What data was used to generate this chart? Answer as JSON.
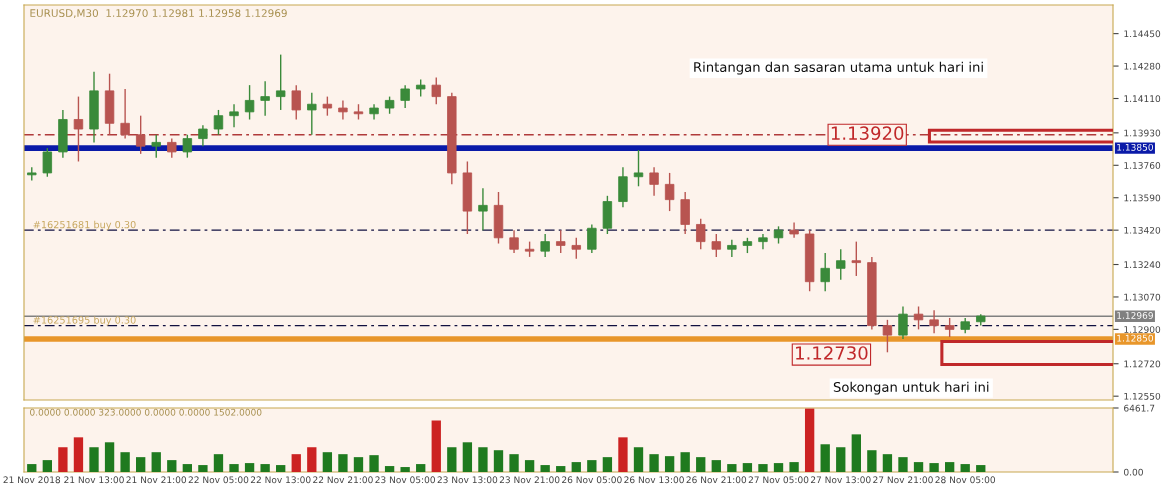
{
  "chart_data": [
    {
      "type": "candlestick",
      "title": "EURUSD,M30  1.12970 1.12981 1.12958 1.12969",
      "categories": [
        "21 Nov 2018",
        null,
        null,
        null,
        "21 Nov 13:00",
        null,
        null,
        null,
        "21 Nov 21:00",
        null,
        null,
        null,
        "22 Nov 05:00",
        null,
        null,
        null,
        "22 Nov 13:00",
        null,
        null,
        null,
        "22 Nov 21:00",
        null,
        null,
        null,
        "23 Nov 05:00",
        null,
        null,
        null,
        "23 Nov 13:00",
        null,
        null,
        null,
        "23 Nov 21:00",
        null,
        null,
        null,
        "26 Nov 05:00",
        null,
        null,
        null,
        "26 Nov 13:00",
        null,
        null,
        null,
        "26 Nov 21:00",
        null,
        null,
        null,
        "27 Nov 05:00",
        null,
        null,
        null,
        "27 Nov 13:00",
        null,
        null,
        null,
        "27 Nov 21:00",
        null,
        null,
        null,
        "28 Nov 05:00",
        null,
        null,
        null,
        null,
        null,
        null,
        null,
        null,
        null
      ],
      "ohlc": [
        [
          1.1371,
          1.1375,
          1.1368,
          1.1372
        ],
        [
          1.1372,
          1.1385,
          1.137,
          1.1383
        ],
        [
          1.1383,
          1.1405,
          1.138,
          1.14
        ],
        [
          1.14,
          1.1412,
          1.1378,
          1.1395
        ],
        [
          1.1395,
          1.1425,
          1.1388,
          1.1415
        ],
        [
          1.1415,
          1.1424,
          1.1392,
          1.1398
        ],
        [
          1.1398,
          1.1416,
          1.139,
          1.1392
        ],
        [
          1.1392,
          1.1402,
          1.1382,
          1.1386
        ],
        [
          1.1386,
          1.1392,
          1.138,
          1.1388
        ],
        [
          1.1388,
          1.139,
          1.138,
          1.1383
        ],
        [
          1.1383,
          1.1392,
          1.138,
          1.139
        ],
        [
          1.139,
          1.1397,
          1.1386,
          1.1395
        ],
        [
          1.1395,
          1.1405,
          1.1392,
          1.1402
        ],
        [
          1.1402,
          1.1408,
          1.1396,
          1.1404
        ],
        [
          1.1404,
          1.1418,
          1.14,
          1.141
        ],
        [
          1.141,
          1.142,
          1.1402,
          1.1412
        ],
        [
          1.1412,
          1.1434,
          1.1405,
          1.1415
        ],
        [
          1.1415,
          1.1418,
          1.14,
          1.1405
        ],
        [
          1.1405,
          1.1414,
          1.1392,
          1.1408
        ],
        [
          1.1408,
          1.1412,
          1.1402,
          1.1406
        ],
        [
          1.1406,
          1.141,
          1.14,
          1.1404
        ],
        [
          1.1404,
          1.1408,
          1.14,
          1.1403
        ],
        [
          1.1403,
          1.1408,
          1.14,
          1.1406
        ],
        [
          1.1406,
          1.1412,
          1.1403,
          1.141
        ],
        [
          1.141,
          1.1418,
          1.1406,
          1.1416
        ],
        [
          1.1416,
          1.1421,
          1.1412,
          1.1418
        ],
        [
          1.1418,
          1.1422,
          1.1408,
          1.1412
        ],
        [
          1.1412,
          1.1414,
          1.1366,
          1.1372
        ],
        [
          1.1372,
          1.1378,
          1.134,
          1.1352
        ],
        [
          1.1352,
          1.1364,
          1.1342,
          1.1355
        ],
        [
          1.1355,
          1.1362,
          1.1335,
          1.1338
        ],
        [
          1.1338,
          1.1342,
          1.133,
          1.1332
        ],
        [
          1.1332,
          1.1336,
          1.1328,
          1.1331
        ],
        [
          1.1331,
          1.134,
          1.1328,
          1.1336
        ],
        [
          1.1336,
          1.1342,
          1.133,
          1.1334
        ],
        [
          1.1334,
          1.1338,
          1.1327,
          1.1332
        ],
        [
          1.1332,
          1.1345,
          1.133,
          1.1343
        ],
        [
          1.1343,
          1.136,
          1.134,
          1.1357
        ],
        [
          1.1357,
          1.1375,
          1.1354,
          1.137
        ],
        [
          1.137,
          1.1384,
          1.1365,
          1.1372
        ],
        [
          1.1372,
          1.1375,
          1.136,
          1.1366
        ],
        [
          1.1366,
          1.1372,
          1.1352,
          1.1358
        ],
        [
          1.1358,
          1.1362,
          1.134,
          1.1345
        ],
        [
          1.1345,
          1.1348,
          1.1332,
          1.1336
        ],
        [
          1.1336,
          1.134,
          1.1328,
          1.1332
        ],
        [
          1.1332,
          1.1337,
          1.1328,
          1.1334
        ],
        [
          1.1334,
          1.1338,
          1.133,
          1.1336
        ],
        [
          1.1336,
          1.134,
          1.1332,
          1.1338
        ],
        [
          1.1338,
          1.1344,
          1.1335,
          1.1342
        ],
        [
          1.1342,
          1.1346,
          1.1338,
          1.134
        ],
        [
          1.134,
          1.1342,
          1.131,
          1.1315
        ],
        [
          1.1315,
          1.133,
          1.131,
          1.1322
        ],
        [
          1.1322,
          1.1332,
          1.1316,
          1.1326
        ],
        [
          1.1326,
          1.1336,
          1.1318,
          1.1325
        ],
        [
          1.1325,
          1.1328,
          1.129,
          1.1292
        ],
        [
          1.1292,
          1.1295,
          1.1278,
          1.1287
        ],
        [
          1.1287,
          1.1302,
          1.1285,
          1.1298
        ],
        [
          1.1298,
          1.1302,
          1.129,
          1.1295
        ],
        [
          1.1295,
          1.13,
          1.1288,
          1.1292
        ],
        [
          1.1292,
          1.1296,
          1.1286,
          1.129
        ],
        [
          1.129,
          1.1296,
          1.1288,
          1.1294
        ],
        [
          1.1294,
          1.1298,
          1.1292,
          1.1297
        ],
        null,
        null,
        null,
        null,
        null,
        null,
        null,
        null
      ],
      "colors": [
        "#3a8a3a",
        "#3a8a3a",
        "#3a8a3a",
        "#b85450",
        "#3a8a3a",
        "#b85450",
        "#b85450",
        "#b85450",
        "#3a8a3a",
        "#b85450",
        "#3a8a3a",
        "#3a8a3a",
        "#3a8a3a",
        "#3a8a3a",
        "#3a8a3a",
        "#3a8a3a",
        "#3a8a3a",
        "#b85450",
        "#3a8a3a",
        "#b85450",
        "#b85450",
        "#b85450",
        "#3a8a3a",
        "#3a8a3a",
        "#3a8a3a",
        "#3a8a3a",
        "#b85450",
        "#b85450",
        "#b85450",
        "#3a8a3a",
        "#b85450",
        "#b85450",
        "#b85450",
        "#3a8a3a",
        "#b85450",
        "#b85450",
        "#3a8a3a",
        "#3a8a3a",
        "#3a8a3a",
        "#3a8a3a",
        "#b85450",
        "#b85450",
        "#b85450",
        "#b85450",
        "#b85450",
        "#3a8a3a",
        "#3a8a3a",
        "#3a8a3a",
        "#3a8a3a",
        "#b85450",
        "#b85450",
        "#3a8a3a",
        "#3a8a3a",
        "#b85450",
        "#b85450",
        "#b85450",
        "#3a8a3a",
        "#b85450",
        "#b85450",
        "#b85450",
        "#3a8a3a",
        "#3a8a3a",
        null,
        null,
        null,
        null,
        null,
        null,
        null,
        null
      ],
      "ylim": [
        1.1253,
        1.146
      ],
      "yticks": [
        {
          "value": 1.1445,
          "label": "1.14450"
        },
        {
          "value": 1.1428,
          "label": "1.14280"
        },
        {
          "value": 1.1411,
          "label": "1.14110"
        },
        {
          "value": 1.1393,
          "label": "1.13930"
        },
        {
          "value": 1.1376,
          "label": "1.13760"
        },
        {
          "value": 1.1359,
          "label": "1.13590"
        },
        {
          "value": 1.1342,
          "label": "1.13420"
        },
        {
          "value": 1.1324,
          "label": "1.13240"
        },
        {
          "value": 1.1307,
          "label": "1.13070"
        },
        {
          "value": 1.129,
          "label": "1.12900"
        },
        {
          "value": 1.1272,
          "label": "1.12720"
        },
        {
          "value": 1.1255,
          "label": "1.12550"
        }
      ],
      "ref_lines": [
        {
          "axis": "y",
          "value": 1.1392,
          "label": null,
          "color": "#b03a3a",
          "line_style": "dashed"
        },
        {
          "axis": "y",
          "value": 1.1385,
          "label": "1.13850",
          "color": "#0a1aa8",
          "line_style": "solid"
        },
        {
          "axis": "y",
          "value": 1.1342,
          "label": "#16251681 buy 0.30",
          "color": "#101040",
          "line_style": "dashed"
        },
        {
          "axis": "y",
          "value": 1.12969,
          "label": "1.12969",
          "color": "#808080",
          "line_style": "solid"
        },
        {
          "axis": "y",
          "value": 1.1292,
          "label": "#16251695 buy 0.30",
          "color": "#101040",
          "line_style": "dashed"
        },
        {
          "axis": "y",
          "value": 1.1285,
          "label": "1.12850",
          "color": "#e8962a",
          "line_style": "solid"
        }
      ],
      "annotations": [
        "Rintangan dan sasaran utama untuk hari ini",
        {
          "text": "1.13920",
          "y": 1.1392
        },
        "1.12730",
        "Sokongan untuk hari ini"
      ]
    },
    {
      "type": "bar",
      "title": "0.0000 0.0000 323.0000 0.0000 0.0000 1502.0000",
      "categories": [
        null,
        null,
        null,
        null,
        null,
        null,
        null,
        null,
        null,
        null,
        null,
        null,
        null,
        null,
        null,
        null,
        null,
        null,
        null,
        null,
        null,
        null,
        null,
        null,
        null,
        null,
        null,
        null,
        null,
        null,
        null,
        null,
        null,
        null,
        null,
        null,
        null,
        null,
        null,
        null,
        null,
        null,
        null,
        null,
        null,
        null,
        null,
        null,
        null,
        null,
        null,
        null,
        null,
        null,
        null,
        null,
        null,
        null,
        null,
        null,
        null,
        null,
        null,
        null,
        null,
        null,
        null,
        null,
        null,
        null
      ],
      "values": [
        800,
        1200,
        2500,
        3500,
        2500,
        3000,
        2000,
        1500,
        2000,
        1200,
        800,
        700,
        1800,
        800,
        900,
        800,
        700,
        1800,
        2500,
        2000,
        1800,
        1500,
        1700,
        600,
        500,
        800,
        5200,
        2500,
        3000,
        2500,
        2200,
        1800,
        1200,
        700,
        600,
        1000,
        1200,
        1500,
        3500,
        2500,
        1800,
        1600,
        2000,
        1500,
        1200,
        800,
        900,
        800,
        900,
        1000,
        6400,
        2800,
        2500,
        3800,
        2200,
        1800,
        1500,
        1000,
        900,
        1000,
        800,
        700,
        null,
        null,
        null,
        null,
        null,
        null,
        null,
        null
      ],
      "colors": [
        "#1f7a1f",
        "#1f7a1f",
        "#cc2222",
        "#cc2222",
        "#1f7a1f",
        "#1f7a1f",
        "#1f7a1f",
        "#1f7a1f",
        "#1f7a1f",
        "#1f7a1f",
        "#1f7a1f",
        "#1f7a1f",
        "#1f7a1f",
        "#1f7a1f",
        "#1f7a1f",
        "#1f7a1f",
        "#1f7a1f",
        "#cc2222",
        "#cc2222",
        "#1f7a1f",
        "#1f7a1f",
        "#1f7a1f",
        "#1f7a1f",
        "#1f7a1f",
        "#1f7a1f",
        "#1f7a1f",
        "#cc2222",
        "#1f7a1f",
        "#1f7a1f",
        "#1f7a1f",
        "#1f7a1f",
        "#1f7a1f",
        "#1f7a1f",
        "#1f7a1f",
        "#1f7a1f",
        "#1f7a1f",
        "#1f7a1f",
        "#1f7a1f",
        "#cc2222",
        "#1f7a1f",
        "#1f7a1f",
        "#1f7a1f",
        "#1f7a1f",
        "#1f7a1f",
        "#1f7a1f",
        "#1f7a1f",
        "#1f7a1f",
        "#1f7a1f",
        "#1f7a1f",
        "#1f7a1f",
        "#cc2222",
        "#1f7a1f",
        "#1f7a1f",
        "#1f7a1f",
        "#1f7a1f",
        "#1f7a1f",
        "#1f7a1f",
        "#1f7a1f",
        "#1f7a1f",
        "#1f7a1f",
        "#1f7a1f",
        "#1f7a1f",
        null,
        null,
        null,
        null,
        null,
        null,
        null,
        null
      ],
      "ylim": [
        0,
        6461.7
      ],
      "yticks": [
        {
          "value": 0,
          "label": "0.00"
        },
        6461.7
      ]
    }
  ]
}
